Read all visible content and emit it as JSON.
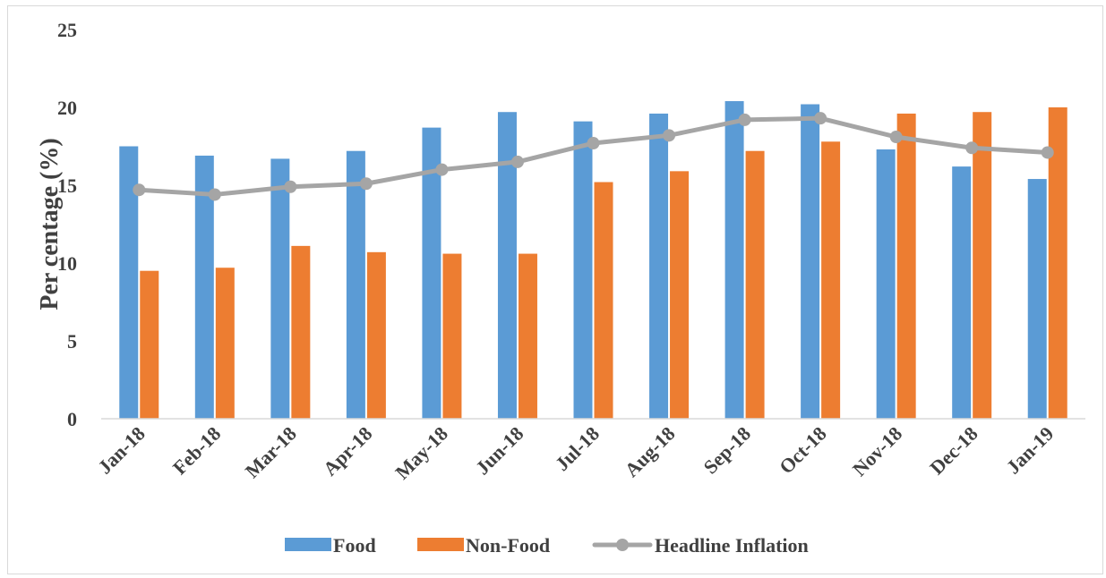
{
  "chart_data": {
    "type": "bar",
    "title": "",
    "xlabel": "",
    "ylabel": "Per centage (%)",
    "ylim": [
      0,
      25
    ],
    "yticks": [
      0,
      5,
      10,
      15,
      20,
      25
    ],
    "grid": false,
    "legend_position": "bottom",
    "categories": [
      "Jan-18",
      "Feb-18",
      "Mar-18",
      "Apr-18",
      "May-18",
      "Jun-18",
      "Jul-18",
      "Aug-18",
      "Sep-18",
      "Oct-18",
      "Nov-18",
      "Dec-18",
      "Jan-19"
    ],
    "series": [
      {
        "name": "Food",
        "kind": "bar",
        "color": "#5B9BD5",
        "values": [
          17.5,
          16.9,
          16.7,
          17.2,
          18.7,
          19.7,
          19.1,
          19.6,
          20.4,
          20.2,
          17.3,
          16.2,
          15.4
        ]
      },
      {
        "name": "Non-Food",
        "kind": "bar",
        "color": "#ED7D31",
        "values": [
          9.5,
          9.7,
          11.1,
          10.7,
          10.6,
          10.6,
          15.2,
          15.9,
          17.2,
          17.8,
          19.6,
          19.7,
          20.0
        ]
      },
      {
        "name": "Headline Inflation",
        "kind": "line",
        "color": "#A5A5A5",
        "values": [
          14.7,
          14.4,
          14.9,
          15.1,
          16.0,
          16.5,
          17.7,
          18.2,
          19.2,
          19.3,
          18.1,
          17.4,
          17.1
        ]
      }
    ]
  }
}
